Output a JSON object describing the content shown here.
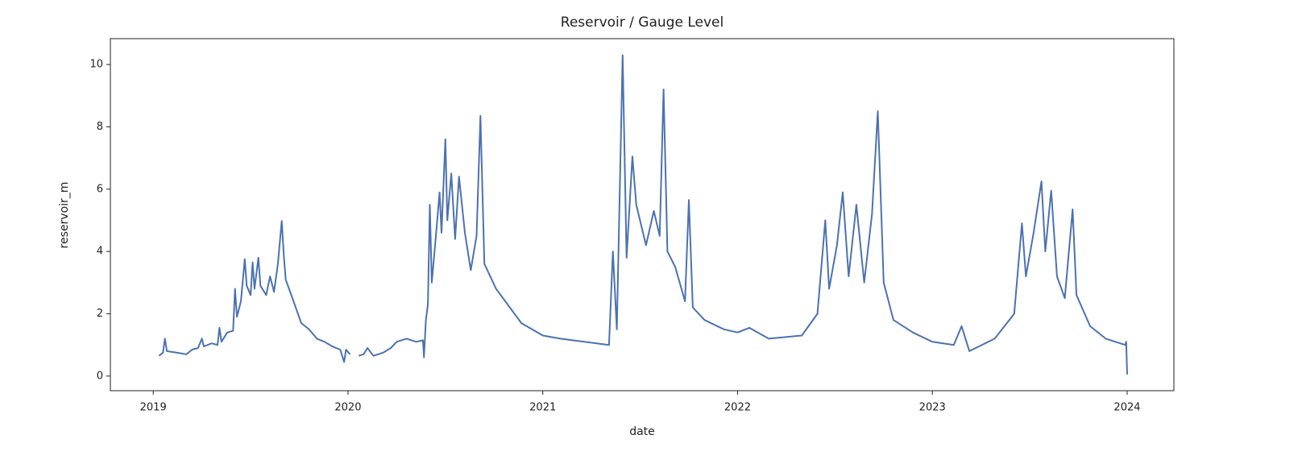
{
  "chart_data": {
    "type": "line",
    "title": "Reservoir / Gauge Level",
    "x_label": "date",
    "y_label": "reservoir_m",
    "x": [
      2019.03,
      2019.05,
      2019.06,
      2019.07,
      2019.12,
      2019.17,
      2019.2,
      2019.23,
      2019.25,
      2019.26,
      2019.3,
      2019.33,
      2019.34,
      2019.35,
      2019.38,
      2019.41,
      2019.42,
      2019.43,
      2019.45,
      2019.47,
      2019.48,
      2019.5,
      2019.51,
      2019.52,
      2019.54,
      2019.55,
      2019.58,
      2019.6,
      2019.62,
      2019.64,
      2019.66,
      2019.67,
      2019.68,
      2019.72,
      2019.76,
      2019.8,
      2019.84,
      2019.88,
      2019.92,
      2019.96,
      2019.98,
      2019.99,
      2020.01,
      2020.03,
      2020.055,
      2020.08,
      2020.1,
      2020.13,
      2020.18,
      2020.22,
      2020.25,
      2020.3,
      2020.35,
      2020.385,
      2020.39,
      2020.4,
      2020.41,
      2020.42,
      2020.43,
      2020.45,
      2020.47,
      2020.48,
      2020.5,
      2020.51,
      2020.53,
      2020.55,
      2020.57,
      2020.6,
      2020.63,
      2020.66,
      2020.68,
      2020.7,
      2020.76,
      2020.89,
      2021.0,
      2021.09,
      2021.34,
      2021.36,
      2021.38,
      2021.41,
      2021.43,
      2021.46,
      2021.48,
      2021.53,
      2021.57,
      2021.6,
      2021.62,
      2021.64,
      2021.68,
      2021.73,
      2021.75,
      2021.77,
      2021.83,
      2021.93,
      2022.0,
      2022.06,
      2022.16,
      2022.33,
      2022.41,
      2022.45,
      2022.47,
      2022.51,
      2022.54,
      2022.57,
      2022.61,
      2022.65,
      2022.69,
      2022.72,
      2022.75,
      2022.8,
      2022.9,
      2023.0,
      2023.11,
      2023.15,
      2023.19,
      2023.32,
      2023.42,
      2023.46,
      2023.48,
      2023.52,
      2023.56,
      2023.58,
      2023.61,
      2023.64,
      2023.68,
      2023.72,
      2023.74,
      2023.81,
      2023.89,
      2023.99,
      2023.995,
      2024.0
    ],
    "series": [
      {
        "name": "reservoir_m",
        "color": "#4c72b0",
        "values": [
          0.65,
          0.75,
          1.2,
          0.8,
          0.75,
          0.7,
          0.85,
          0.9,
          1.2,
          0.95,
          1.05,
          1.0,
          1.55,
          1.1,
          1.4,
          1.45,
          2.8,
          1.9,
          2.4,
          3.75,
          2.9,
          2.6,
          3.65,
          2.8,
          3.8,
          2.9,
          2.6,
          3.2,
          2.7,
          3.6,
          4.98,
          3.9,
          3.1,
          2.4,
          1.7,
          1.5,
          1.2,
          1.1,
          0.95,
          0.85,
          0.45,
          0.85,
          0.7,
          null,
          0.65,
          0.7,
          0.9,
          0.65,
          0.75,
          0.9,
          1.1,
          1.2,
          1.1,
          1.15,
          0.6,
          1.8,
          2.3,
          5.5,
          3.0,
          4.4,
          5.9,
          4.6,
          7.6,
          5.0,
          6.5,
          4.4,
          6.4,
          4.6,
          3.4,
          4.5,
          8.35,
          3.6,
          2.8,
          1.7,
          1.3,
          1.2,
          1.0,
          4.0,
          1.5,
          10.3,
          3.8,
          7.05,
          5.5,
          4.2,
          5.3,
          4.5,
          9.2,
          4.0,
          3.5,
          2.4,
          5.65,
          2.2,
          1.8,
          1.5,
          1.4,
          1.55,
          1.2,
          1.3,
          2.0,
          5.0,
          2.8,
          4.2,
          5.9,
          3.2,
          5.5,
          3.0,
          5.2,
          8.5,
          3.0,
          1.8,
          1.4,
          1.1,
          1.0,
          1.6,
          0.8,
          1.2,
          2.0,
          4.9,
          3.2,
          4.6,
          6.25,
          4.0,
          5.95,
          3.2,
          2.5,
          5.35,
          2.6,
          1.6,
          1.2,
          1.0,
          1.1,
          0.05
        ]
      }
    ],
    "xlim": [
      2018.78,
      2024.24
    ],
    "xticks": [
      2019,
      2020,
      2021,
      2022,
      2023,
      2024
    ],
    "ylim": [
      -0.47,
      10.83
    ],
    "yticks": [
      0,
      2,
      4,
      6,
      8,
      10
    ]
  }
}
